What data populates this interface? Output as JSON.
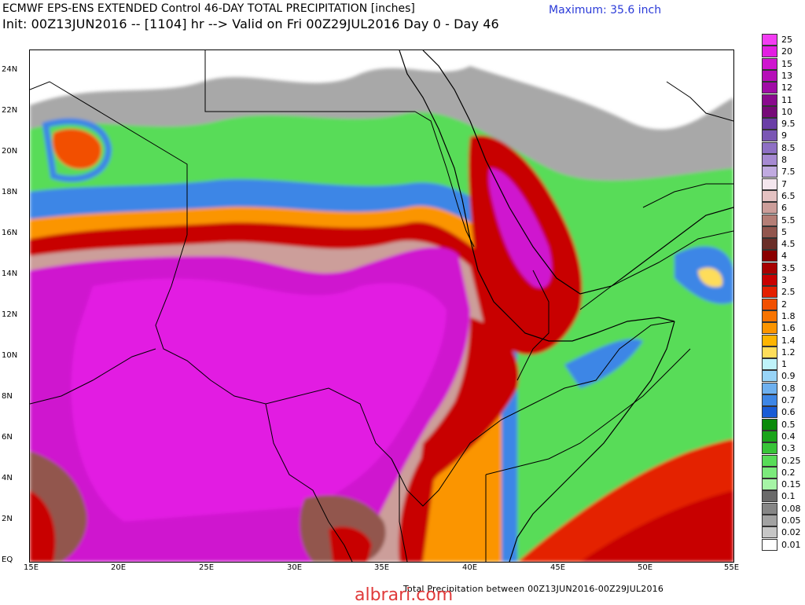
{
  "header": {
    "title": "ECMWF EPS-ENS EXTENDED Control 46-DAY TOTAL PRECIPITATION [inches]",
    "init_line": "Init: 00Z13JUN2016 -- [1104] hr --> Valid on Fri 00Z29JUL2016  Day 0 - Day 46",
    "maximum": "Maximum: 35.6 inch"
  },
  "map": {
    "latitude_labels": [
      "24N",
      "22N",
      "20N",
      "18N",
      "16N",
      "14N",
      "12N",
      "10N",
      "8N",
      "6N",
      "4N",
      "2N",
      "EQ"
    ],
    "longitude_labels": [
      "15E",
      "20E",
      "25E",
      "30E",
      "35E",
      "40E",
      "45E",
      "50E",
      "55E"
    ],
    "lat_range": [
      0,
      25
    ],
    "lon_range": [
      15,
      55
    ]
  },
  "legend": {
    "items": [
      {
        "label": "25",
        "color": "#f23cf2"
      },
      {
        "label": "20",
        "color": "#e21ee2"
      },
      {
        "label": "15",
        "color": "#cf14cf"
      },
      {
        "label": "13",
        "color": "#b60fb8"
      },
      {
        "label": "12",
        "color": "#a00ca6"
      },
      {
        "label": "11",
        "color": "#8a0a8e"
      },
      {
        "label": "10",
        "color": "#760a78"
      },
      {
        "label": "9.5",
        "color": "#6a3ea6"
      },
      {
        "label": "9",
        "color": "#7a56b4"
      },
      {
        "label": "8.5",
        "color": "#8e70c4"
      },
      {
        "label": "8",
        "color": "#a68ad2"
      },
      {
        "label": "7.5",
        "color": "#c0aae0"
      },
      {
        "label": "7",
        "color": "#f4e6ee"
      },
      {
        "label": "6.5",
        "color": "#e4c2c2"
      },
      {
        "label": "6",
        "color": "#cc9e9a"
      },
      {
        "label": "5.5",
        "color": "#b47e76"
      },
      {
        "label": "5",
        "color": "#92564e"
      },
      {
        "label": "4.5",
        "color": "#6a2e28"
      },
      {
        "label": "4",
        "color": "#8a0000"
      },
      {
        "label": "3.5",
        "color": "#a80000"
      },
      {
        "label": "3",
        "color": "#c80000"
      },
      {
        "label": "2.5",
        "color": "#e42000"
      },
      {
        "label": "2",
        "color": "#f25000"
      },
      {
        "label": "1.8",
        "color": "#f87400"
      },
      {
        "label": "1.6",
        "color": "#fb9500"
      },
      {
        "label": "1.4",
        "color": "#feb400"
      },
      {
        "label": "1.2",
        "color": "#fedd5a"
      },
      {
        "label": "1",
        "color": "#bff3fa"
      },
      {
        "label": "0.9",
        "color": "#98d4f7"
      },
      {
        "label": "0.8",
        "color": "#6eb0ef"
      },
      {
        "label": "0.7",
        "color": "#3e86e6"
      },
      {
        "label": "0.6",
        "color": "#1a5cd6"
      },
      {
        "label": "0.5",
        "color": "#0a8a0a"
      },
      {
        "label": "0.4",
        "color": "#1aa41a"
      },
      {
        "label": "0.3",
        "color": "#38c438"
      },
      {
        "label": "0.25",
        "color": "#58dc58"
      },
      {
        "label": "0.2",
        "color": "#7cea7c"
      },
      {
        "label": "0.15",
        "color": "#a6f4a6"
      },
      {
        "label": "0.1",
        "color": "#6a6a6a"
      },
      {
        "label": "0.08",
        "color": "#868686"
      },
      {
        "label": "0.05",
        "color": "#a2a2a2"
      },
      {
        "label": "0.02",
        "color": "#c6c6c6"
      },
      {
        "label": "0.01",
        "color": "#ffffff"
      }
    ]
  },
  "footer": {
    "caption": "Total Precipitation between 00Z13JUN2016-00Z29JUL2016",
    "watermark": "albrari.com"
  }
}
